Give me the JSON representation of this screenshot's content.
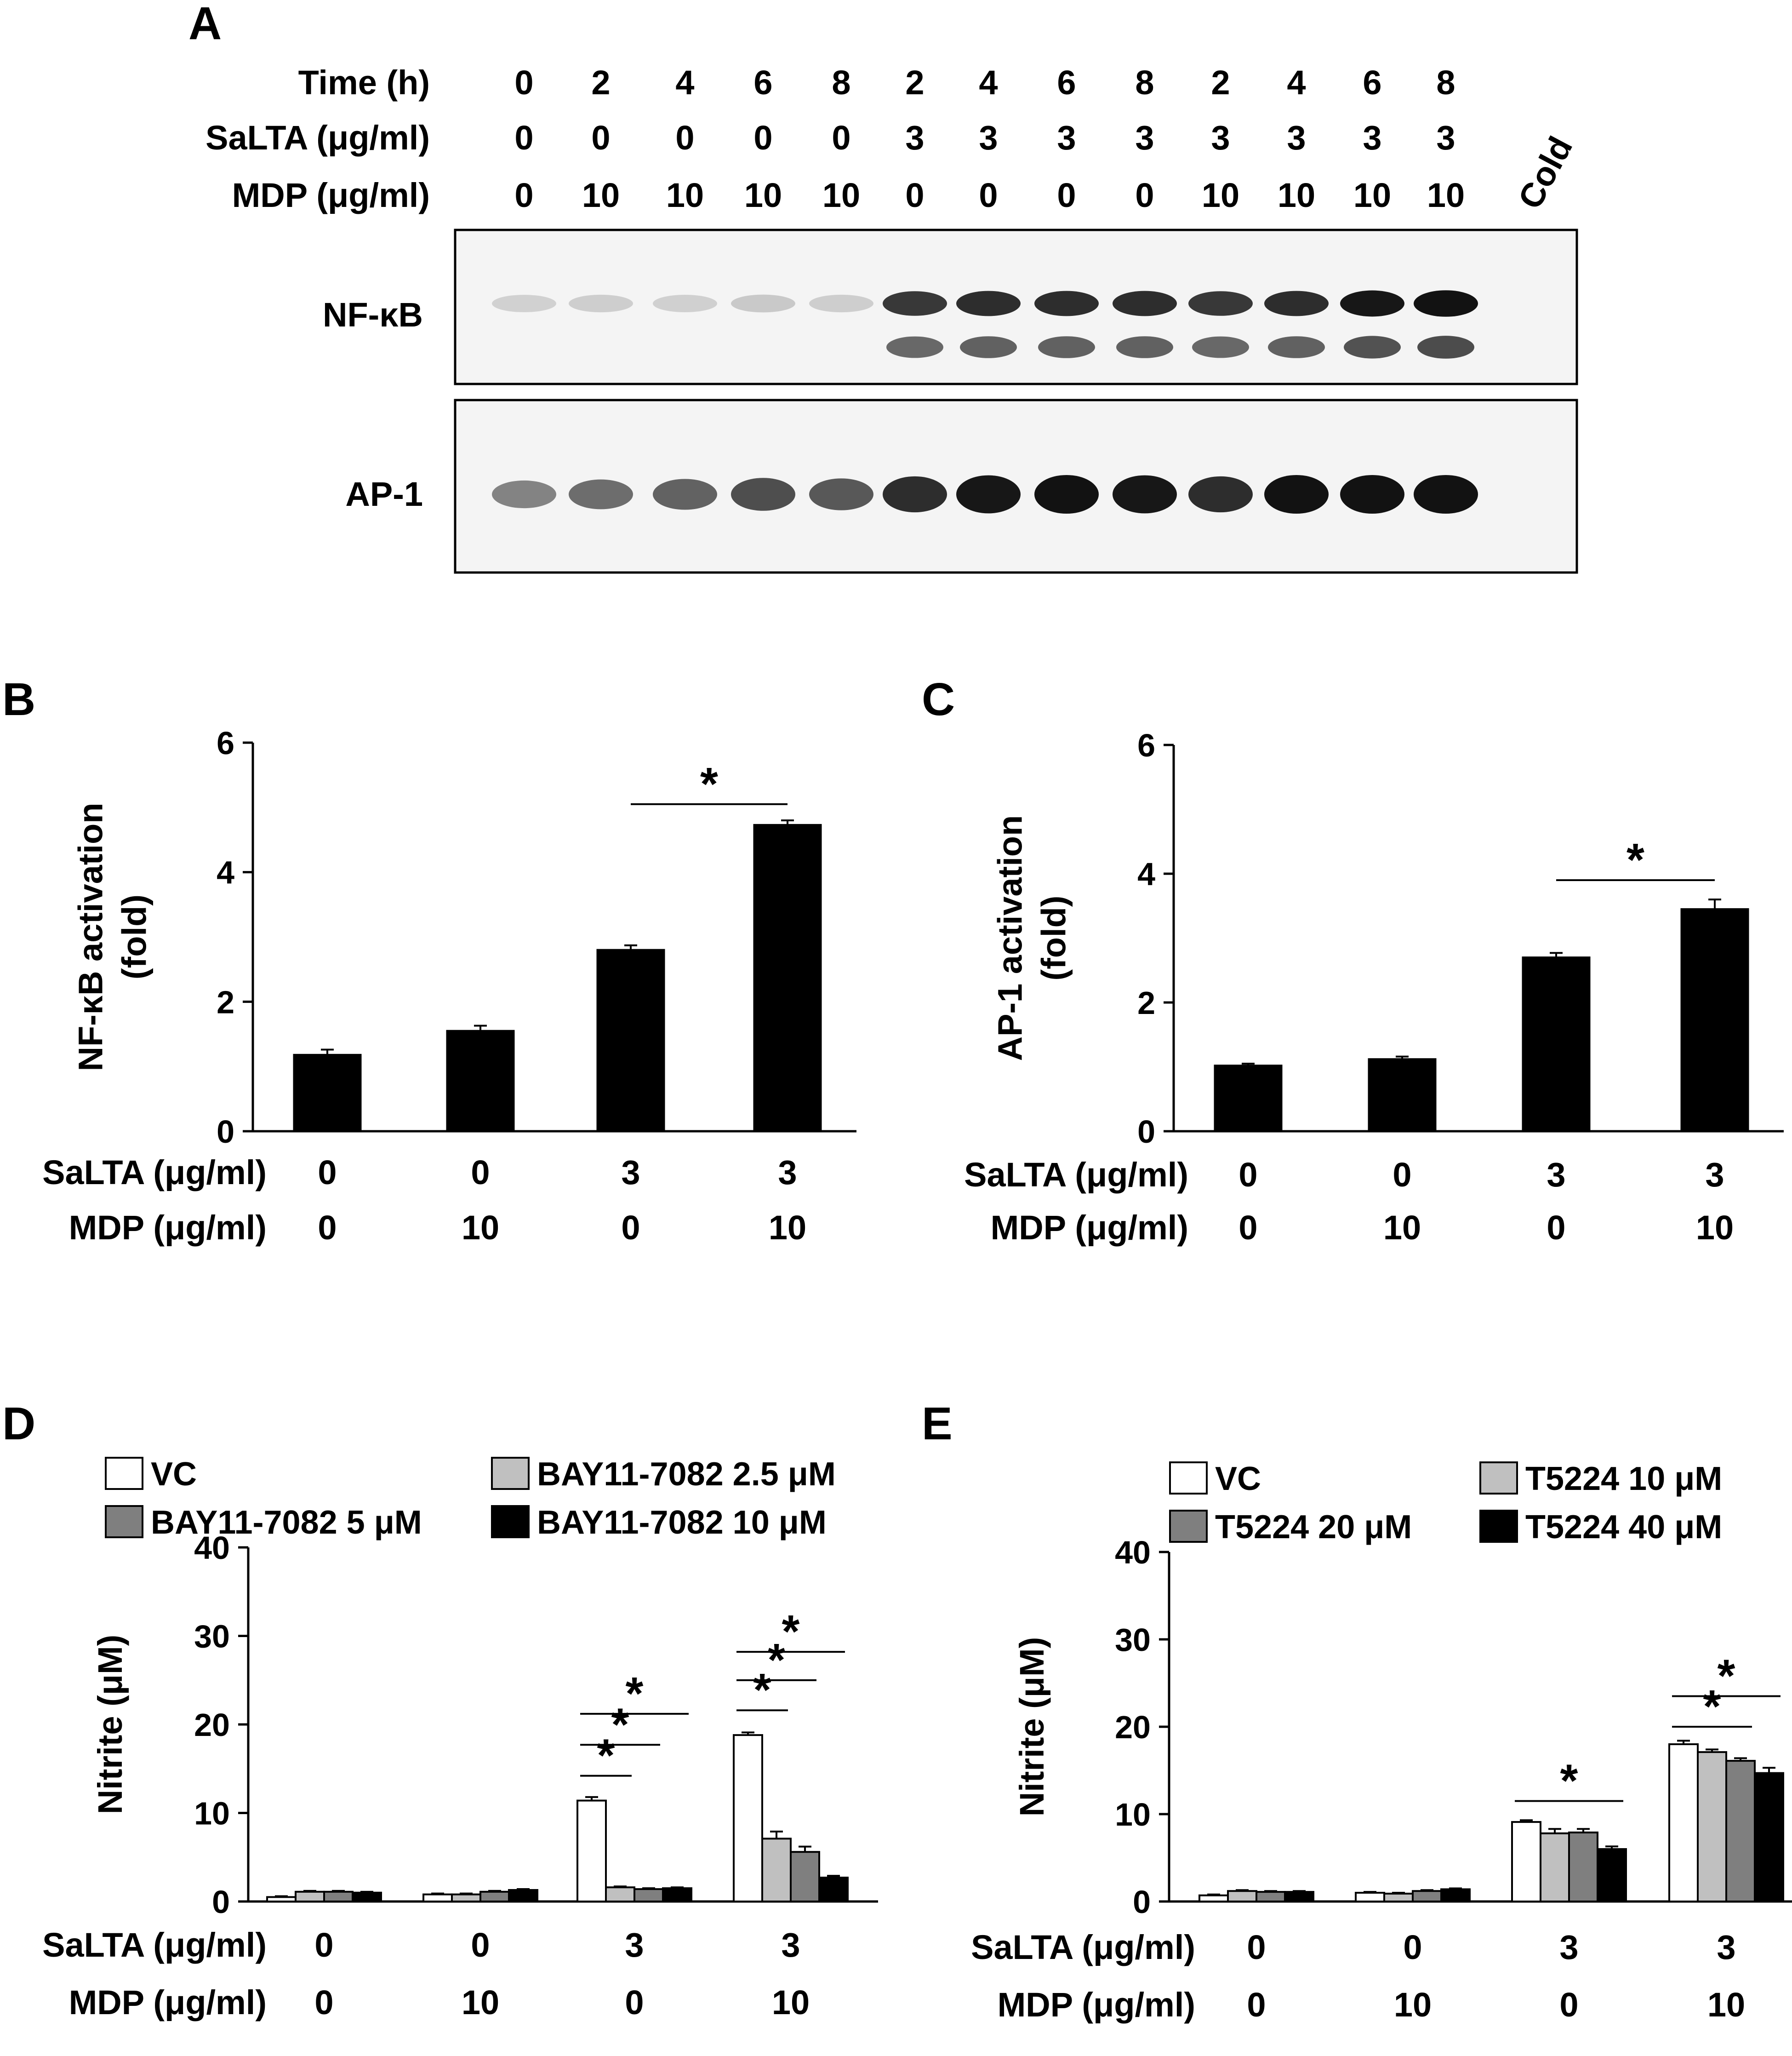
{
  "panel_a": {
    "letter": "A",
    "rows": [
      {
        "label": "Time (h)",
        "values": [
          "0",
          "2",
          "4",
          "6",
          "8",
          "2",
          "4",
          "6",
          "8",
          "2",
          "4",
          "6",
          "8"
        ]
      },
      {
        "label": "SaLTA  (μg/ml)",
        "values": [
          "0",
          "0",
          "0",
          "0",
          "0",
          "3",
          "3",
          "3",
          "3",
          "3",
          "3",
          "3",
          "3"
        ]
      },
      {
        "label": "MDP (μg/ml)",
        "values": [
          "0",
          "10",
          "10",
          "10",
          "10",
          "0",
          "0",
          "0",
          "0",
          "10",
          "10",
          "10",
          "10"
        ]
      }
    ],
    "cold_label": "Cold",
    "blots": [
      {
        "label": "NF-κB",
        "intensity": [
          0.08,
          0.1,
          0.09,
          0.12,
          0.1,
          0.8,
          0.85,
          0.85,
          0.85,
          0.8,
          0.85,
          0.95,
          0.98
        ]
      },
      {
        "label": "AP-1",
        "intensity": [
          0.45,
          0.55,
          0.6,
          0.7,
          0.65,
          0.85,
          0.95,
          0.98,
          0.95,
          0.85,
          0.98,
          0.98,
          0.98
        ]
      }
    ]
  },
  "chart_data": [
    {
      "id": "B",
      "letter": "B",
      "type": "bar",
      "ylabel": [
        "NF-κB activation",
        "(fold)"
      ],
      "ylim": [
        0,
        6
      ],
      "yticks": [
        0,
        2,
        4,
        6
      ],
      "categories": [
        "1",
        "2",
        "3",
        "4"
      ],
      "conditions": [
        {
          "label": "SaLTA (μg/ml)",
          "values": [
            "0",
            "0",
            "3",
            "3"
          ]
        },
        {
          "label": "MDP (μg/ml)",
          "values": [
            "0",
            "10",
            "0",
            "10"
          ]
        }
      ],
      "series": [
        {
          "values": [
            1.18,
            1.55,
            2.8,
            4.73
          ],
          "errors": [
            0.08,
            0.08,
            0.07,
            0.07
          ],
          "color": "#000000"
        }
      ],
      "significance": [
        {
          "from": 2,
          "to": 3,
          "y": 5.05,
          "label": "*"
        }
      ]
    },
    {
      "id": "C",
      "letter": "C",
      "type": "bar",
      "ylabel": [
        "AP-1 activation",
        "(fold)"
      ],
      "ylim": [
        0,
        6
      ],
      "yticks": [
        0,
        2,
        4,
        6
      ],
      "categories": [
        "1",
        "2",
        "3",
        "4"
      ],
      "conditions": [
        {
          "label": "SaLTA (μg/ml)",
          "values": [
            "0",
            "0",
            "3",
            "3"
          ]
        },
        {
          "label": "MDP (μg/ml)",
          "values": [
            "0",
            "10",
            "0",
            "10"
          ]
        }
      ],
      "series": [
        {
          "values": [
            1.02,
            1.12,
            2.7,
            3.45
          ],
          "errors": [
            0.03,
            0.04,
            0.07,
            0.15
          ],
          "color": "#000000"
        }
      ],
      "significance": [
        {
          "from": 2,
          "to": 3,
          "y": 3.9,
          "label": "*"
        }
      ]
    },
    {
      "id": "D",
      "letter": "D",
      "type": "bar",
      "ylabel": [
        "Nitrite (μM)"
      ],
      "ylim": [
        0,
        40
      ],
      "yticks": [
        0,
        10,
        20,
        30,
        40
      ],
      "categories": [
        "1",
        "2",
        "3",
        "4"
      ],
      "conditions": [
        {
          "label": "SaLTA (μg/ml)",
          "values": [
            "0",
            "0",
            "3",
            "3"
          ]
        },
        {
          "label": "MDP (μg/ml)",
          "values": [
            "0",
            "10",
            "0",
            "10"
          ]
        }
      ],
      "series": [
        {
          "name": "VC",
          "color": "#ffffff",
          "values": [
            0.5,
            0.8,
            11.4,
            18.8
          ],
          "errors": [
            0.1,
            0.1,
            0.4,
            0.3
          ]
        },
        {
          "name": "BAY11-7082 2.5 μM",
          "color": "#c0c0c0",
          "values": [
            1.1,
            0.8,
            1.6,
            7.1
          ],
          "errors": [
            0.1,
            0.1,
            0.1,
            0.8
          ]
        },
        {
          "name": "BAY11-7082 5 μM",
          "color": "#7f7f7f",
          "values": [
            1.1,
            1.1,
            1.4,
            5.6
          ],
          "errors": [
            0.1,
            0.1,
            0.1,
            0.6
          ]
        },
        {
          "name": "BAY11-7082 10 μM",
          "color": "#000000",
          "values": [
            1.0,
            1.3,
            1.5,
            2.7
          ],
          "errors": [
            0.1,
            0.1,
            0.1,
            0.2
          ]
        }
      ],
      "legend": [
        {
          "name": "VC",
          "color": "#ffffff"
        },
        {
          "name": "BAY11-7082 2.5 μM",
          "color": "#c0c0c0"
        },
        {
          "name": "BAY11-7082 5 μM",
          "color": "#7f7f7f"
        },
        {
          "name": "BAY11-7082 10 μM",
          "color": "#000000"
        }
      ],
      "significance": [
        {
          "group": 2,
          "from": 0,
          "to": 1,
          "y": 14.2,
          "label": "*"
        },
        {
          "group": 2,
          "from": 0,
          "to": 2,
          "y": 17.7,
          "label": "*"
        },
        {
          "group": 2,
          "from": 0,
          "to": 3,
          "y": 21.2,
          "label": "*"
        },
        {
          "group": 3,
          "from": 0,
          "to": 1,
          "y": 21.6,
          "label": "*"
        },
        {
          "group": 3,
          "from": 0,
          "to": 2,
          "y": 25.0,
          "label": "*"
        },
        {
          "group": 3,
          "from": 0,
          "to": 3,
          "y": 28.2,
          "label": "*"
        }
      ]
    },
    {
      "id": "E",
      "letter": "E",
      "type": "bar",
      "ylabel": [
        "Nitrite (μM)"
      ],
      "ylim": [
        0,
        40
      ],
      "yticks": [
        0,
        10,
        20,
        30,
        40
      ],
      "categories": [
        "1",
        "2",
        "3",
        "4"
      ],
      "conditions": [
        {
          "label": "SaLTA (μg/ml)",
          "values": [
            "0",
            "0",
            "3",
            "3"
          ]
        },
        {
          "label": "MDP (μg/ml)",
          "values": [
            "0",
            "10",
            "0",
            "10"
          ]
        }
      ],
      "series": [
        {
          "name": "VC",
          "color": "#ffffff",
          "values": [
            0.7,
            1.0,
            9.1,
            18.0
          ],
          "errors": [
            0.1,
            0.1,
            0.2,
            0.4
          ]
        },
        {
          "name": "T5224 10 μM",
          "color": "#c0c0c0",
          "values": [
            1.2,
            0.9,
            7.8,
            17.1
          ],
          "errors": [
            0.1,
            0.1,
            0.5,
            0.3
          ]
        },
        {
          "name": "T5224 20 μM",
          "color": "#7f7f7f",
          "values": [
            1.1,
            1.2,
            7.9,
            16.1
          ],
          "errors": [
            0.1,
            0.1,
            0.4,
            0.3
          ]
        },
        {
          "name": "T5224 40 μM",
          "color": "#000000",
          "values": [
            1.1,
            1.4,
            6.0,
            14.7
          ],
          "errors": [
            0.1,
            0.1,
            0.3,
            0.6
          ]
        }
      ],
      "legend": [
        {
          "name": "VC",
          "color": "#ffffff"
        },
        {
          "name": "T5224 10 μM",
          "color": "#c0c0c0"
        },
        {
          "name": "T5224 20 μM",
          "color": "#7f7f7f"
        },
        {
          "name": "T5224 40 μM",
          "color": "#000000"
        }
      ],
      "significance": [
        {
          "group": 2,
          "from": 0,
          "to": 3,
          "y": 11.5,
          "label": "*"
        },
        {
          "group": 3,
          "from": 0,
          "to": 2,
          "y": 20.0,
          "label": "*"
        },
        {
          "group": 3,
          "from": 0,
          "to": 3,
          "y": 23.5,
          "label": "*"
        }
      ]
    }
  ]
}
